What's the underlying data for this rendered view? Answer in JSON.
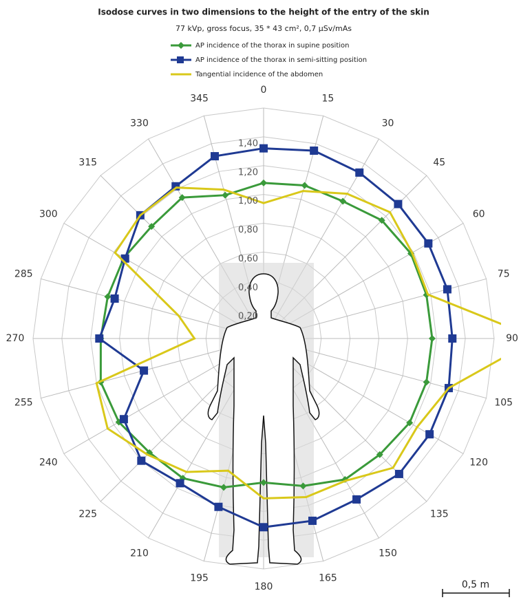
{
  "chart_data": {
    "type": "radar",
    "title": "Isodose curves in two dimensions to the height of the entry of the skin",
    "subtitle": "77 kVp, gross focus, 35 * 43 cm², 0,7 µSv/mAs",
    "categories": [
      "0",
      "15",
      "30",
      "45",
      "60",
      "75",
      "90",
      "105",
      "120",
      "135",
      "150",
      "165",
      "180",
      "195",
      "210",
      "225",
      "240",
      "255",
      "270",
      "285",
      "300",
      "315",
      "330",
      "345"
    ],
    "series": [
      {
        "name": "AP incidence of the thorax in supine position",
        "color": "#3a9a3a",
        "marker": "diamond",
        "values": [
          1.08,
          1.1,
          1.1,
          1.16,
          1.18,
          1.17,
          1.17,
          1.17,
          1.17,
          1.14,
          1.13,
          1.06,
          1.0,
          1.07,
          1.12,
          1.12,
          1.16,
          1.17,
          1.13,
          1.12,
          1.12,
          1.1,
          1.13,
          1.03
        ]
      },
      {
        "name": "AP incidence of the thorax in semi-sitting position",
        "color": "#1f3a93",
        "marker": "square",
        "values": [
          1.32,
          1.35,
          1.33,
          1.32,
          1.32,
          1.32,
          1.31,
          1.33,
          1.33,
          1.33,
          1.29,
          1.31,
          1.31,
          1.21,
          1.16,
          1.2,
          1.12,
          0.86,
          1.14,
          1.07,
          1.11,
          1.21,
          1.22,
          1.31
        ]
      },
      {
        "name": "Tangential incidence of the abdomen",
        "color": "#d9c81a",
        "marker": "none",
        "values": [
          0.94,
          1.06,
          1.16,
          1.24,
          1.19,
          1.18,
          1.9,
          1.33,
          1.23,
          1.27,
          1.14,
          1.14,
          1.11,
          0.95,
          1.07,
          1.14,
          1.25,
          1.2,
          0.48,
          0.61,
          1.19,
          1.21,
          1.21,
          1.07
        ]
      }
    ],
    "ylim": [
      0,
      1.6
    ],
    "yticks": [
      {
        "value": 0.2,
        "label": "0,20"
      },
      {
        "value": 0.4,
        "label": "0,40"
      },
      {
        "value": 0.6,
        "label": "0,60"
      },
      {
        "value": 0.8,
        "label": "0,80"
      },
      {
        "value": 1.0,
        "label": "1,00"
      },
      {
        "value": 1.2,
        "label": "1,20"
      },
      {
        "value": 1.4,
        "label": "1,40"
      }
    ],
    "grid": true,
    "scale_label": "0,5 m"
  }
}
